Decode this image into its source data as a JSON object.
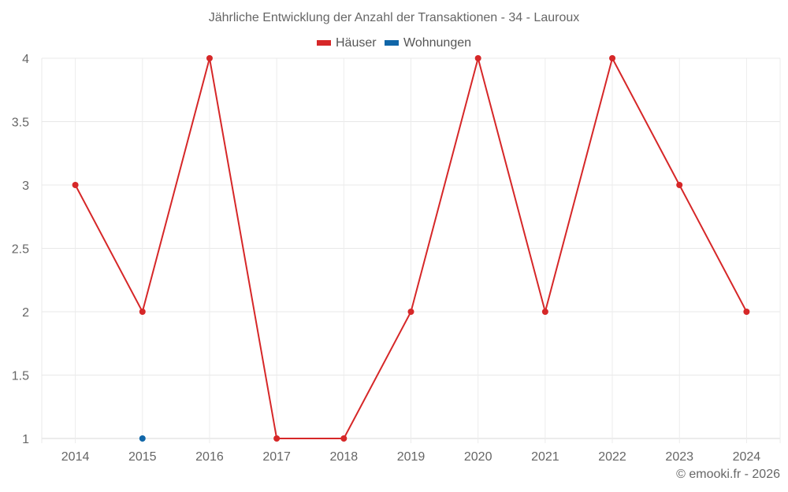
{
  "chart_data": {
    "type": "line",
    "title": "Jährliche Entwicklung der Anzahl der Transaktionen - 34 - Lauroux",
    "xlabel": "",
    "ylabel": "",
    "categories": [
      "2014",
      "2015",
      "2016",
      "2017",
      "2018",
      "2019",
      "2020",
      "2021",
      "2022",
      "2023",
      "2024"
    ],
    "series": [
      {
        "name": "Häuser",
        "color": "#d62728",
        "values": [
          3,
          2,
          4,
          1,
          1,
          2,
          4,
          2,
          4,
          3,
          2
        ]
      },
      {
        "name": "Wohnungen",
        "color": "#1066a8",
        "values": [
          null,
          1,
          null,
          null,
          null,
          null,
          null,
          null,
          null,
          null,
          null
        ]
      }
    ],
    "ylim": [
      1,
      4
    ],
    "yticks": [
      "1",
      "1.5",
      "2",
      "2.5",
      "3",
      "3.5",
      "4"
    ],
    "grid": true,
    "legend_position": "top"
  },
  "credit": "© emooki.fr - 2026"
}
